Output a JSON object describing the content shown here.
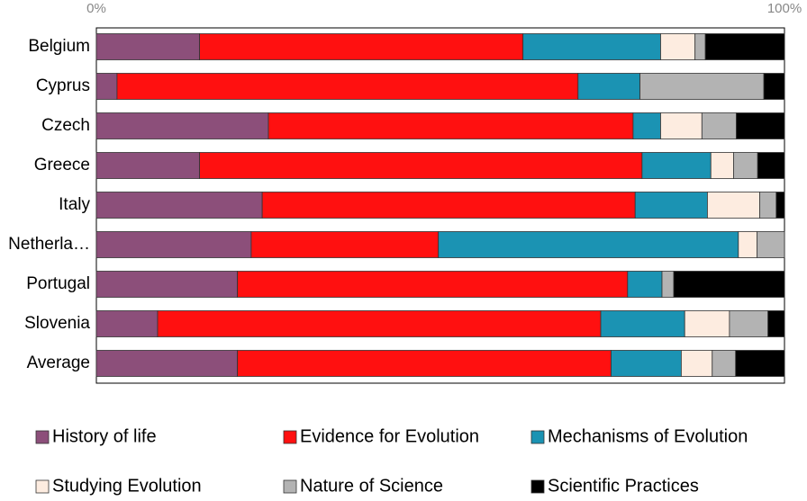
{
  "chart_data": {
    "type": "stacked_barh",
    "categories": [
      "Belgium",
      "Cyprus",
      "Czech",
      "Greece",
      "Italy",
      "Netherla…",
      "Portugal",
      "Slovenia",
      "Average"
    ],
    "series": [
      {
        "name": "History of life",
        "color": "#8c4f7a",
        "values": [
          15,
          3,
          25,
          15,
          24.1,
          22.5,
          20.5,
          8.9,
          20.5
        ]
      },
      {
        "name": "Evidence for Evolution",
        "color": "#ff1010",
        "values": [
          47,
          67,
          53,
          64.3,
          54.2,
          27.2,
          56.7,
          64.4,
          54.3
        ]
      },
      {
        "name": "Mechanisms of Evolution",
        "color": "#1b93b3",
        "values": [
          20,
          9,
          4,
          10,
          10.5,
          43.6,
          5,
          12.2,
          10.2
        ]
      },
      {
        "name": "Studying Evolution",
        "color": "#fdece0",
        "values": [
          5,
          0,
          6,
          3.3,
          7.6,
          2.7,
          0,
          6.5,
          4.5
        ]
      },
      {
        "name": "Nature of Science",
        "color": "#b3b3b3",
        "values": [
          1.5,
          18,
          5,
          3.5,
          2.4,
          4,
          1.7,
          5.6,
          3.4
        ]
      },
      {
        "name": "Scientific Practices",
        "color": "#000000",
        "values": [
          11.5,
          3,
          7,
          3.9,
          1.2,
          0,
          16.1,
          2.4,
          7.1
        ]
      }
    ],
    "xlim": [
      0,
      100
    ],
    "xticks": [
      {
        "value": 0,
        "label": "0%"
      },
      {
        "value": 100,
        "label": "100%"
      }
    ]
  }
}
